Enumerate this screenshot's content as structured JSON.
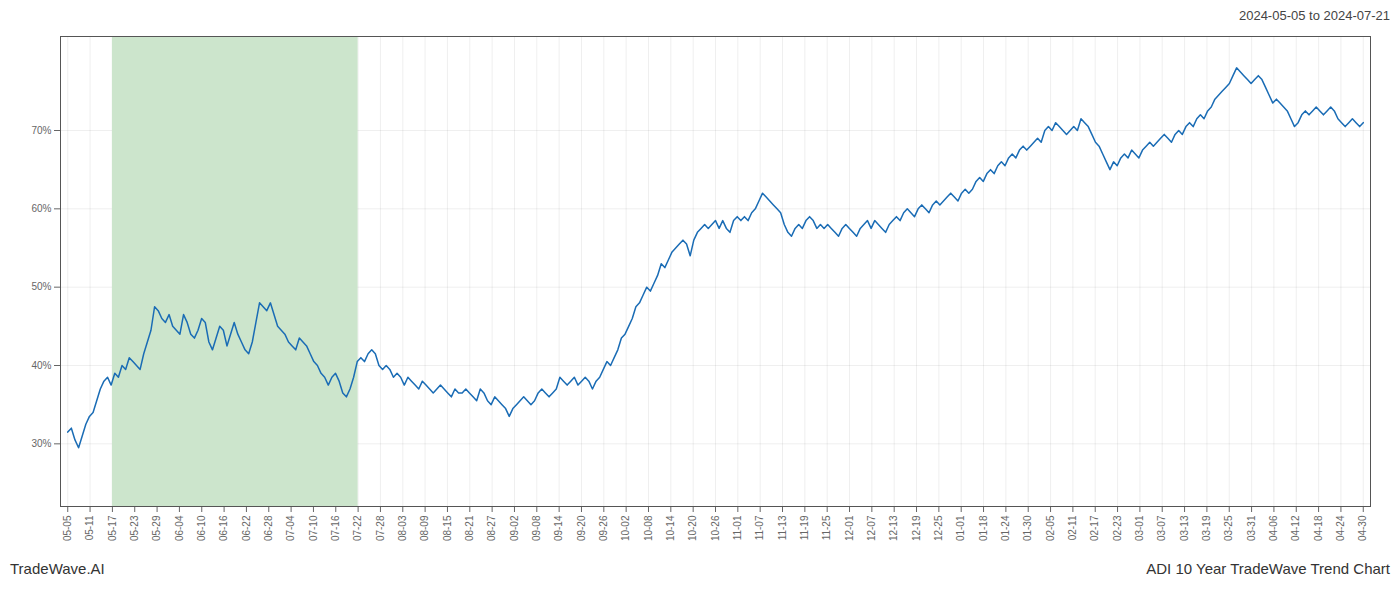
{
  "chart_data": {
    "type": "line",
    "title": "2024-05-05 to 2024-07-21",
    "annotations": [
      {
        "text": "TradeWave.AI",
        "position": "bottom left"
      },
      {
        "text": "ADI 10 Year TradeWave Trend Chart",
        "position": "bottom right"
      }
    ],
    "color": "#1a6cb5",
    "grid": true,
    "highlight": {
      "xlim": [
        12.344828,
        80.241379
      ],
      "color": "#cce5cc"
    },
    "xlim": [
      -2,
      360
    ],
    "ylim": [
      22,
      82
    ],
    "yticks": [
      {
        "value": 30,
        "label": "30%"
      },
      {
        "value": 40,
        "label": "40%"
      },
      {
        "value": 50,
        "label": "50%"
      },
      {
        "value": 60,
        "label": "60%"
      },
      {
        "value": 70,
        "label": "70%"
      }
    ],
    "xticks": [
      {
        "value": 0,
        "label": "05-05"
      },
      {
        "value": 6.172414,
        "label": "05-11"
      },
      {
        "value": 12.344828,
        "label": "05-17"
      },
      {
        "value": 18.517241,
        "label": "05-23"
      },
      {
        "value": 24.689655,
        "label": "05-29"
      },
      {
        "value": 30.862069,
        "label": "06-04"
      },
      {
        "value": 37.034483,
        "label": "06-10"
      },
      {
        "value": 43.206897,
        "label": "06-16"
      },
      {
        "value": 49.37931,
        "label": "06-22"
      },
      {
        "value": 55.551724,
        "label": "06-28"
      },
      {
        "value": 61.724138,
        "label": "07-04"
      },
      {
        "value": 67.896552,
        "label": "07-10"
      },
      {
        "value": 74.068966,
        "label": "07-16"
      },
      {
        "value": 80.241379,
        "label": "07-22"
      },
      {
        "value": 86.413793,
        "label": "07-28"
      },
      {
        "value": 92.586207,
        "label": "08-03"
      },
      {
        "value": 98.758621,
        "label": "08-09"
      },
      {
        "value": 104.931034,
        "label": "08-15"
      },
      {
        "value": 111.103448,
        "label": "08-21"
      },
      {
        "value": 117.275862,
        "label": "08-27"
      },
      {
        "value": 123.448276,
        "label": "09-02"
      },
      {
        "value": 129.62069,
        "label": "09-08"
      },
      {
        "value": 135.793103,
        "label": "09-14"
      },
      {
        "value": 141.965517,
        "label": "09-20"
      },
      {
        "value": 148.137931,
        "label": "09-26"
      },
      {
        "value": 154.310345,
        "label": "10-02"
      },
      {
        "value": 160.482759,
        "label": "10-08"
      },
      {
        "value": 166.655172,
        "label": "10-14"
      },
      {
        "value": 172.827586,
        "label": "10-20"
      },
      {
        "value": 179,
        "label": "10-26"
      },
      {
        "value": 185.172414,
        "label": "11-01"
      },
      {
        "value": 191.344828,
        "label": "11-07"
      },
      {
        "value": 197.517241,
        "label": "11-13"
      },
      {
        "value": 203.689655,
        "label": "11-19"
      },
      {
        "value": 209.862069,
        "label": "11-25"
      },
      {
        "value": 216.034483,
        "label": "12-01"
      },
      {
        "value": 222.206897,
        "label": "12-07"
      },
      {
        "value": 228.37931,
        "label": "12-13"
      },
      {
        "value": 234.551724,
        "label": "12-19"
      },
      {
        "value": 240.724138,
        "label": "12-25"
      },
      {
        "value": 246.896552,
        "label": "01-01"
      },
      {
        "value": 253.068966,
        "label": "01-18"
      },
      {
        "value": 259.241379,
        "label": "01-24"
      },
      {
        "value": 265.413793,
        "label": "01-30"
      },
      {
        "value": 271.586207,
        "label": "02-05"
      },
      {
        "value": 277.758621,
        "label": "02-11"
      },
      {
        "value": 283.931034,
        "label": "02-17"
      },
      {
        "value": 290.103448,
        "label": "02-23"
      },
      {
        "value": 296.275862,
        "label": "03-01"
      },
      {
        "value": 302.448276,
        "label": "03-07"
      },
      {
        "value": 308.62069,
        "label": "03-13"
      },
      {
        "value": 314.793103,
        "label": "03-19"
      },
      {
        "value": 320.965517,
        "label": "03-25"
      },
      {
        "value": 327.137931,
        "label": "03-31"
      },
      {
        "value": 333.310345,
        "label": "04-06"
      },
      {
        "value": 339.482759,
        "label": "04-12"
      },
      {
        "value": 345.655172,
        "label": "04-18"
      },
      {
        "value": 351.827586,
        "label": "04-24"
      },
      {
        "value": 358,
        "label": "04-30"
      }
    ],
    "x": [
      0,
      1,
      2,
      3,
      4,
      5,
      6,
      7,
      8,
      9,
      10,
      11,
      12,
      13,
      14,
      15,
      16,
      17,
      18,
      19,
      20,
      21,
      22,
      23,
      24,
      25,
      26,
      27,
      28,
      29,
      30,
      31,
      32,
      33,
      34,
      35,
      36,
      37,
      38,
      39,
      40,
      41,
      42,
      43,
      44,
      45,
      46,
      47,
      48,
      49,
      50,
      51,
      52,
      53,
      54,
      55,
      56,
      57,
      58,
      59,
      60,
      61,
      62,
      63,
      64,
      65,
      66,
      67,
      68,
      69,
      70,
      71,
      72,
      73,
      74,
      75,
      76,
      77,
      78,
      79,
      80,
      81,
      82,
      83,
      84,
      85,
      86,
      87,
      88,
      89,
      90,
      91,
      92,
      93,
      94,
      95,
      96,
      97,
      98,
      99,
      100,
      101,
      102,
      103,
      104,
      105,
      106,
      107,
      108,
      109,
      110,
      111,
      112,
      113,
      114,
      115,
      116,
      117,
      118,
      119,
      120,
      121,
      122,
      123,
      124,
      125,
      126,
      127,
      128,
      129,
      130,
      131,
      132,
      133,
      134,
      135,
      136,
      137,
      138,
      139,
      140,
      141,
      142,
      143,
      144,
      145,
      146,
      147,
      148,
      149,
      150,
      151,
      152,
      153,
      154,
      155,
      156,
      157,
      158,
      159,
      160,
      161,
      162,
      163,
      164,
      165,
      166,
      167,
      168,
      169,
      170,
      171,
      172,
      173,
      174,
      175,
      176,
      177,
      178,
      179,
      180,
      181,
      182,
      183,
      184,
      185,
      186,
      187,
      188,
      189,
      190,
      191,
      192,
      193,
      194,
      195,
      196,
      197,
      198,
      199,
      200,
      201,
      202,
      203,
      204,
      205,
      206,
      207,
      208,
      209,
      210,
      211,
      212,
      213,
      214,
      215,
      216,
      217,
      218,
      219,
      220,
      221,
      222,
      223,
      224,
      225,
      226,
      227,
      228,
      229,
      230,
      231,
      232,
      233,
      234,
      235,
      236,
      237,
      238,
      239,
      240,
      241,
      242,
      243,
      244,
      245,
      246,
      247,
      248,
      249,
      250,
      251,
      252,
      253,
      254,
      255,
      256,
      257,
      258,
      259,
      260,
      261,
      262,
      263,
      264,
      265,
      266,
      267,
      268,
      269,
      270,
      271,
      272,
      273,
      274,
      275,
      276,
      277,
      278,
      279,
      280,
      281,
      282,
      283,
      284,
      285,
      286,
      287,
      288,
      289,
      290,
      291,
      292,
      293,
      294,
      295,
      296,
      297,
      298,
      299,
      300,
      301,
      302,
      303,
      304,
      305,
      306,
      307,
      308,
      309,
      310,
      311,
      312,
      313,
      314,
      315,
      316,
      317,
      318,
      319,
      320,
      321,
      322,
      323,
      324,
      325,
      326,
      327,
      328,
      329,
      330,
      331,
      332,
      333,
      334,
      335,
      336,
      337,
      338,
      339,
      340,
      341,
      342,
      343,
      344,
      345,
      346,
      347,
      348,
      349,
      350,
      351,
      352,
      353,
      354,
      355,
      356,
      357,
      358
    ],
    "values": [
      31.5,
      32.0,
      30.5,
      29.5,
      31.0,
      32.5,
      33.5,
      34.0,
      35.5,
      37.0,
      38.0,
      38.5,
      37.5,
      39.0,
      38.5,
      40.0,
      39.5,
      41.0,
      40.5,
      40.0,
      39.5,
      41.5,
      43.0,
      44.5,
      47.5,
      47.0,
      46.0,
      45.5,
      46.5,
      45.0,
      44.5,
      44.0,
      46.5,
      45.5,
      44.0,
      43.5,
      44.5,
      46.0,
      45.5,
      43.0,
      42.0,
      43.5,
      45.0,
      44.5,
      42.5,
      44.0,
      45.5,
      44.0,
      43.0,
      42.0,
      41.5,
      43.0,
      45.5,
      48.0,
      47.5,
      47.0,
      48.0,
      46.5,
      45.0,
      44.5,
      44.0,
      43.0,
      42.5,
      42.0,
      43.5,
      43.0,
      42.5,
      41.5,
      40.5,
      40.0,
      39.0,
      38.5,
      37.5,
      38.5,
      39.0,
      38.0,
      36.5,
      36.0,
      37.0,
      38.5,
      40.5,
      41.0,
      40.5,
      41.5,
      42.0,
      41.5,
      40.0,
      39.5,
      40.0,
      39.5,
      38.5,
      39.0,
      38.5,
      37.5,
      38.5,
      38.0,
      37.5,
      37.0,
      38.0,
      37.5,
      37.0,
      36.5,
      37.0,
      37.5,
      37.0,
      36.5,
      36.0,
      37.0,
      36.5,
      36.5,
      37.0,
      36.5,
      36.0,
      35.5,
      37.0,
      36.5,
      35.5,
      35.0,
      36.0,
      35.5,
      35.0,
      34.5,
      33.5,
      34.5,
      35.0,
      35.5,
      36.0,
      35.5,
      35.0,
      35.5,
      36.5,
      37.0,
      36.5,
      36.0,
      36.5,
      37.0,
      38.5,
      38.0,
      37.5,
      38.0,
      38.5,
      37.5,
      38.0,
      38.5,
      38.0,
      37.0,
      38.0,
      38.5,
      39.5,
      40.5,
      40.0,
      41.0,
      42.0,
      43.5,
      44.0,
      45.0,
      46.0,
      47.5,
      48.0,
      49.0,
      50.0,
      49.5,
      50.5,
      51.5,
      53.0,
      52.5,
      53.5,
      54.5,
      55.0,
      55.5,
      56.0,
      55.5,
      54.0,
      56.0,
      57.0,
      57.5,
      58.0,
      57.5,
      58.0,
      58.5,
      57.5,
      58.5,
      57.5,
      57.0,
      58.5,
      59.0,
      58.5,
      59.0,
      58.5,
      59.5,
      60.0,
      61.0,
      62.0,
      61.5,
      61.0,
      60.5,
      60.0,
      59.5,
      58.0,
      57.0,
      56.5,
      57.5,
      58.0,
      57.5,
      58.5,
      59.0,
      58.5,
      57.5,
      58.0,
      57.5,
      58.0,
      57.5,
      57.0,
      56.5,
      57.5,
      58.0,
      57.5,
      57.0,
      56.5,
      57.5,
      58.0,
      58.5,
      57.5,
      58.5,
      58.0,
      57.5,
      57.0,
      58.0,
      58.5,
      59.0,
      58.5,
      59.5,
      60.0,
      59.5,
      59.0,
      60.0,
      60.5,
      60.0,
      59.5,
      60.5,
      61.0,
      60.5,
      61.0,
      61.5,
      62.0,
      61.5,
      61.0,
      62.0,
      62.5,
      62.0,
      62.5,
      63.5,
      64.0,
      63.5,
      64.5,
      65.0,
      64.5,
      65.5,
      66.0,
      65.5,
      66.5,
      67.0,
      66.5,
      67.5,
      68.0,
      67.5,
      68.0,
      68.5,
      69.0,
      68.5,
      70.0,
      70.5,
      70.0,
      71.0,
      70.5,
      70.0,
      69.5,
      70.0,
      70.5,
      70.0,
      71.5,
      71.0,
      70.5,
      69.5,
      68.5,
      68.0,
      67.0,
      66.0,
      65.0,
      66.0,
      65.5,
      66.5,
      67.0,
      66.5,
      67.5,
      67.0,
      66.5,
      67.5,
      68.0,
      68.5,
      68.0,
      68.5,
      69.0,
      69.5,
      69.0,
      68.5,
      69.5,
      70.0,
      69.5,
      70.5,
      71.0,
      70.5,
      71.5,
      72.0,
      71.5,
      72.5,
      73.0,
      74.0,
      74.5,
      75.0,
      75.5,
      76.0,
      77.0,
      78.0,
      77.5,
      77.0,
      76.5,
      76.0,
      76.5,
      77.0,
      76.5,
      75.5,
      74.5,
      73.5,
      74.0,
      73.5,
      73.0,
      72.5,
      71.5,
      70.5,
      71.0,
      72.0,
      72.5,
      72.0,
      72.5,
      73.0,
      72.5,
      72.0,
      72.5,
      73.0,
      72.5,
      71.5,
      71.0,
      70.5,
      71.0,
      71.5,
      71.0,
      70.5,
      71.0
    ]
  }
}
